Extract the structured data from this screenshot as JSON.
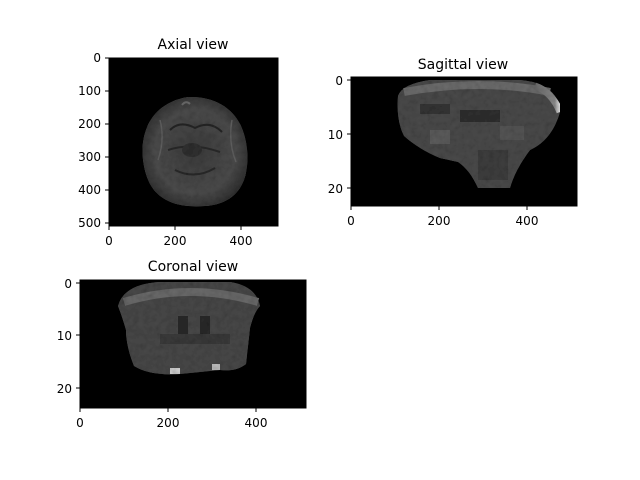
{
  "figure": {
    "panels": [
      {
        "id": "axial",
        "title": "Axial view",
        "x_ticks": [
          0,
          200,
          400
        ],
        "y_ticks": [
          0,
          100,
          200,
          300,
          400,
          500
        ],
        "image_content": "axial brain MRI slice, grayscale, on black background"
      },
      {
        "id": "sagittal",
        "title": "Sagittal view",
        "x_ticks": [
          0,
          200,
          400
        ],
        "y_ticks": [
          0,
          10,
          20
        ],
        "image_content": "sagittal brain MRI slice, grayscale, low vertical resolution"
      },
      {
        "id": "coronal",
        "title": "Coronal view",
        "x_ticks": [
          0,
          200,
          400
        ],
        "y_ticks": [
          0,
          10,
          20
        ],
        "image_content": "coronal brain MRI slice, grayscale, low vertical resolution"
      }
    ],
    "colors": {
      "image_background": "#000000",
      "brain_tissue": "#5a5a5a",
      "axes": "#000000"
    }
  }
}
